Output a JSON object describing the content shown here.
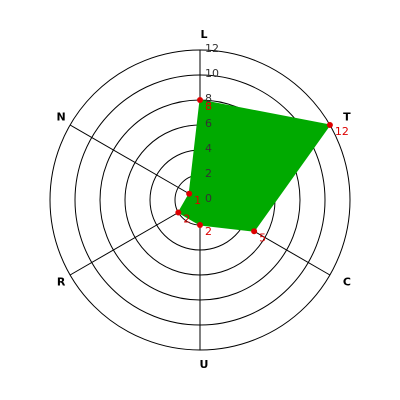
{
  "chart_data": {
    "type": "radar",
    "categories": [
      "L",
      "T",
      "C",
      "U",
      "R",
      "N"
    ],
    "series": [
      {
        "color": "#00aa00",
        "marker_color": "#dd0000",
        "values": [
          8,
          12,
          5,
          2,
          2,
          1
        ]
      }
    ],
    "rlim": [
      0,
      12
    ],
    "rticks": [
      0,
      2,
      4,
      6,
      8,
      10,
      12
    ],
    "grid": true
  }
}
